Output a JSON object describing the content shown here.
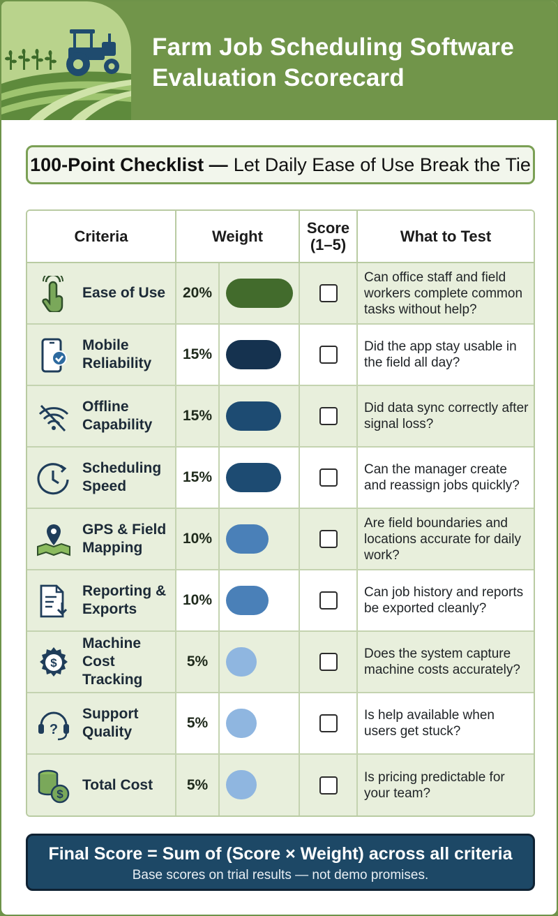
{
  "header": {
    "title_line1": "Farm Job Scheduling Software",
    "title_line2": "Evaluation Scorecard",
    "logo_icon": "tractor-field-icon"
  },
  "banner": {
    "bold_text": "100-Point Checklist —",
    "text": "Let Daily Ease of Use Break the Tie"
  },
  "table": {
    "headers": {
      "criteria": "Criteria",
      "weight": "Weight",
      "score_line1": "Score",
      "score_line2": "(1–5)",
      "test": "What to Test"
    },
    "rows": [
      {
        "icon": "tap-hand-icon",
        "criteria": "Ease of Use",
        "weight": "20%",
        "weight_value": 20,
        "bar_color": "#426b2c",
        "test": "Can office staff and field workers complete common tasks without help?"
      },
      {
        "icon": "mobile-check-icon",
        "criteria": "Mobile Reliability",
        "weight": "15%",
        "weight_value": 15,
        "bar_color": "#15324f",
        "test": "Did the app stay usable in the field all day?"
      },
      {
        "icon": "wifi-off-icon",
        "criteria": "Offline Capability",
        "weight": "15%",
        "weight_value": 15,
        "bar_color": "#1d4b72",
        "test": "Did data sync correctly after signal loss?"
      },
      {
        "icon": "clock-icon",
        "criteria": "Scheduling Speed",
        "weight": "15%",
        "weight_value": 15,
        "bar_color": "#1d4b72",
        "test": "Can the manager create and reassign jobs quickly?"
      },
      {
        "icon": "map-pin-icon",
        "criteria": "GPS & Field Mapping",
        "weight": "10%",
        "weight_value": 10,
        "bar_color": "#4a80b8",
        "test": "Are field boundaries and locations accurate for daily work?"
      },
      {
        "icon": "report-export-icon",
        "criteria": "Reporting & Exports",
        "weight": "10%",
        "weight_value": 10,
        "bar_color": "#4a80b8",
        "test": "Can job history and reports be exported cleanly?"
      },
      {
        "icon": "gear-dollar-icon",
        "criteria": "Machine Cost Tracking",
        "weight": "5%",
        "weight_value": 5,
        "bar_color": "#8fb6e0",
        "test": "Does the system capture machine costs accurately?"
      },
      {
        "icon": "headset-icon",
        "criteria": "Support Quality",
        "weight": "5%",
        "weight_value": 5,
        "bar_color": "#8fb6e0",
        "test": "Is help available when users get stuck?"
      },
      {
        "icon": "coins-icon",
        "criteria": "Total Cost",
        "weight": "5%",
        "weight_value": 5,
        "bar_color": "#8fb6e0",
        "test": "Is pricing predictable for your team?"
      }
    ]
  },
  "footer": {
    "formula": "Final Score = Sum of (Score × Weight) across all criteria",
    "note": "Base scores on trial results — not demo promises."
  }
}
